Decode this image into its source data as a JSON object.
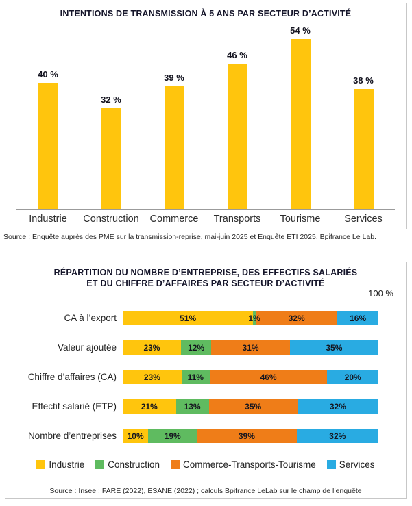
{
  "panel1": {
    "title": "INTENTIONS DE TRANSMISSION À 5 ANS PAR SECTEUR D’ACTIVITÉ",
    "source": "Source : Enquête auprès des PME sur la transmission-reprise, mai-juin 2025 et Enquête ETI 2025, Bpifrance Le Lab."
  },
  "panel2": {
    "title_lines": [
      "RÉPARTITION DU NOMBRE D’ENTREPRISE, DES EFFECTIFS SALARIÉS",
      "ET DU CHIFFRE D’AFFAIRES PAR SECTEUR D’ACTIVITÉ"
    ],
    "axis_max_label": "100 %",
    "source": "Source : Insee : FARE (2022), ESANE (2022) ; calculs Bpifrance LeLab sur le champ de l’enquête"
  },
  "colors": {
    "industrie": "#FFC50D",
    "construction": "#5FBB60",
    "commerce_transports_tourisme": "#EF7D18",
    "services": "#29ABE2",
    "title_text": "#15152a"
  },
  "chart_data": [
    {
      "type": "bar",
      "orientation": "vertical",
      "title": "INTENTIONS DE TRANSMISSION À 5 ANS PAR SECTEUR D’ACTIVITÉ",
      "categories": [
        "Industrie",
        "Construction",
        "Commerce",
        "Transports",
        "Tourisme",
        "Services"
      ],
      "values": [
        40,
        32,
        39,
        46,
        54,
        38
      ],
      "value_labels": [
        "40 %",
        "32 %",
        "39 %",
        "46 %",
        "54 %",
        "38 %"
      ],
      "bar_color": "#FFC50D",
      "ylim": [
        0,
        60
      ],
      "grid": false
    },
    {
      "type": "bar",
      "orientation": "horizontal",
      "stacked": true,
      "title": "RÉPARTITION DU NOMBRE D’ENTREPRISE, DES EFFECTIFS SALARIÉS ET DU CHIFFRE D’AFFAIRES PAR SECTEUR D’ACTIVITÉ",
      "categories": [
        "CA à l’export",
        "Valeur ajoutée",
        "Chiffre d’affaires (CA)",
        "Effectif salarié (ETP)",
        "Nombre d’entreprises"
      ],
      "series": [
        {
          "name": "Industrie",
          "color": "#FFC50D",
          "values": [
            51,
            23,
            23,
            21,
            10
          ]
        },
        {
          "name": "Construction",
          "color": "#5FBB60",
          "values": [
            1,
            12,
            11,
            13,
            19
          ]
        },
        {
          "name": "Commerce-Transports-Tourisme",
          "color": "#EF7D18",
          "values": [
            32,
            31,
            46,
            35,
            39
          ]
        },
        {
          "name": "Services",
          "color": "#29ABE2",
          "values": [
            16,
            35,
            20,
            32,
            32
          ]
        }
      ],
      "xlim": [
        0,
        100
      ],
      "legend_position": "bottom",
      "grid": false
    }
  ]
}
